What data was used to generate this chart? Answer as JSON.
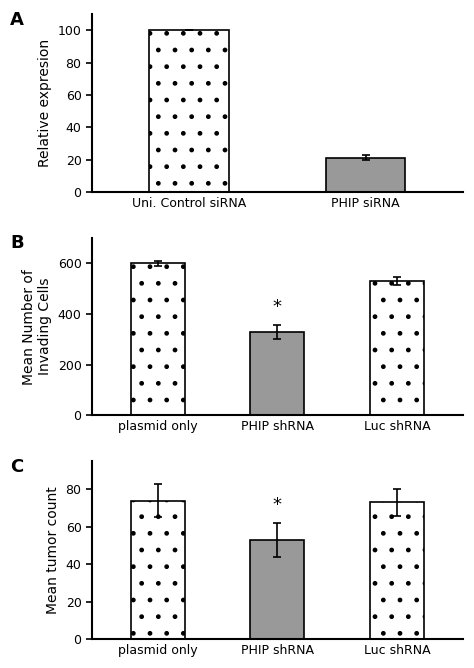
{
  "panel_A": {
    "categories": [
      "Uni. Control siRNA",
      "PHIP siRNA"
    ],
    "values": [
      100,
      21
    ],
    "errors": [
      0,
      1.5
    ],
    "colors": [
      "white",
      "#999999"
    ],
    "hatch": [
      "light_dot",
      "none"
    ],
    "ylabel": "Relative expresion",
    "ylim": [
      0,
      110
    ],
    "yticks": [
      0,
      20,
      40,
      60,
      80,
      100
    ],
    "label": "A",
    "star_index": -1
  },
  "panel_B": {
    "categories": [
      "plasmid only",
      "PHIP shRNA",
      "Luc shRNA"
    ],
    "values": [
      600,
      330,
      530
    ],
    "errors": [
      10,
      28,
      16
    ],
    "colors": [
      "white",
      "#999999",
      "white"
    ],
    "hatch": [
      "light_dot",
      "none",
      "light_dot"
    ],
    "ylabel": "Mean Number of\nInvading Cells",
    "ylim": [
      0,
      700
    ],
    "yticks": [
      0,
      200,
      400,
      600
    ],
    "star_index": 1,
    "label": "B"
  },
  "panel_C": {
    "categories": [
      "plasmid only",
      "PHIP shRNA",
      "Luc shRNA"
    ],
    "values": [
      74,
      53,
      73
    ],
    "errors": [
      9,
      9,
      7
    ],
    "colors": [
      "white",
      "#999999",
      "white"
    ],
    "hatch": [
      "light_dot",
      "none",
      "light_dot"
    ],
    "ylabel": "Mean tumor count",
    "ylim": [
      0,
      95
    ],
    "yticks": [
      0,
      20,
      40,
      60,
      80
    ],
    "star_index": 1,
    "label": "C"
  },
  "bar_width": 0.45,
  "edgecolor": "#000000",
  "text_color": "#000000",
  "bg_color": "#ffffff",
  "fontsize_label": 10,
  "fontsize_tick": 9,
  "fontsize_panel": 13
}
